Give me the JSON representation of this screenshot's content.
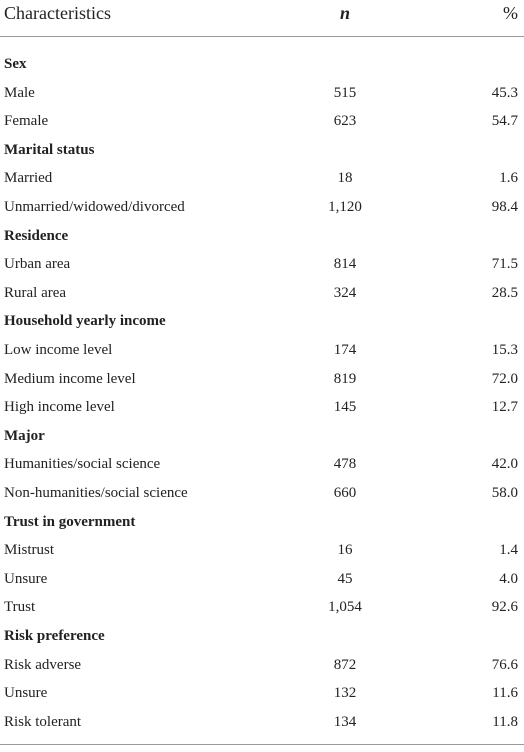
{
  "table": {
    "header": [
      "Characteristics",
      "n",
      "%"
    ],
    "rows": [
      [
        "Sex"
      ],
      [
        "Male",
        "515",
        "45.3"
      ],
      [
        "Female",
        "623",
        "54.7"
      ],
      [
        "Marital status"
      ],
      [
        "Married",
        "18",
        "1.6"
      ],
      [
        "Unmarried/widowed/divorced",
        "1,120",
        "98.4"
      ],
      [
        "Residence"
      ],
      [
        "Urban area",
        "814",
        "71.5"
      ],
      [
        "Rural area",
        "324",
        "28.5"
      ],
      [
        "Household yearly income"
      ],
      [
        "Low income level",
        "174",
        "15.3"
      ],
      [
        "Medium income level",
        "819",
        "72.0"
      ],
      [
        "High income level",
        "145",
        "12.7"
      ],
      [
        "Major"
      ],
      [
        "Humanities/social science",
        "478",
        "42.0"
      ],
      [
        "Non-humanities/social science",
        "660",
        "58.0"
      ],
      [
        "Trust in government"
      ],
      [
        "Mistrust",
        "16",
        "1.4"
      ],
      [
        "Unsure",
        "45",
        "4.0"
      ],
      [
        "Trust",
        "1,054",
        "92.6"
      ],
      [
        "Risk preference"
      ],
      [
        "Risk adverse",
        "872",
        "76.6"
      ],
      [
        "Unsure",
        "132",
        "11.6"
      ],
      [
        "Risk tolerant",
        "134",
        "11.8"
      ]
    ]
  }
}
